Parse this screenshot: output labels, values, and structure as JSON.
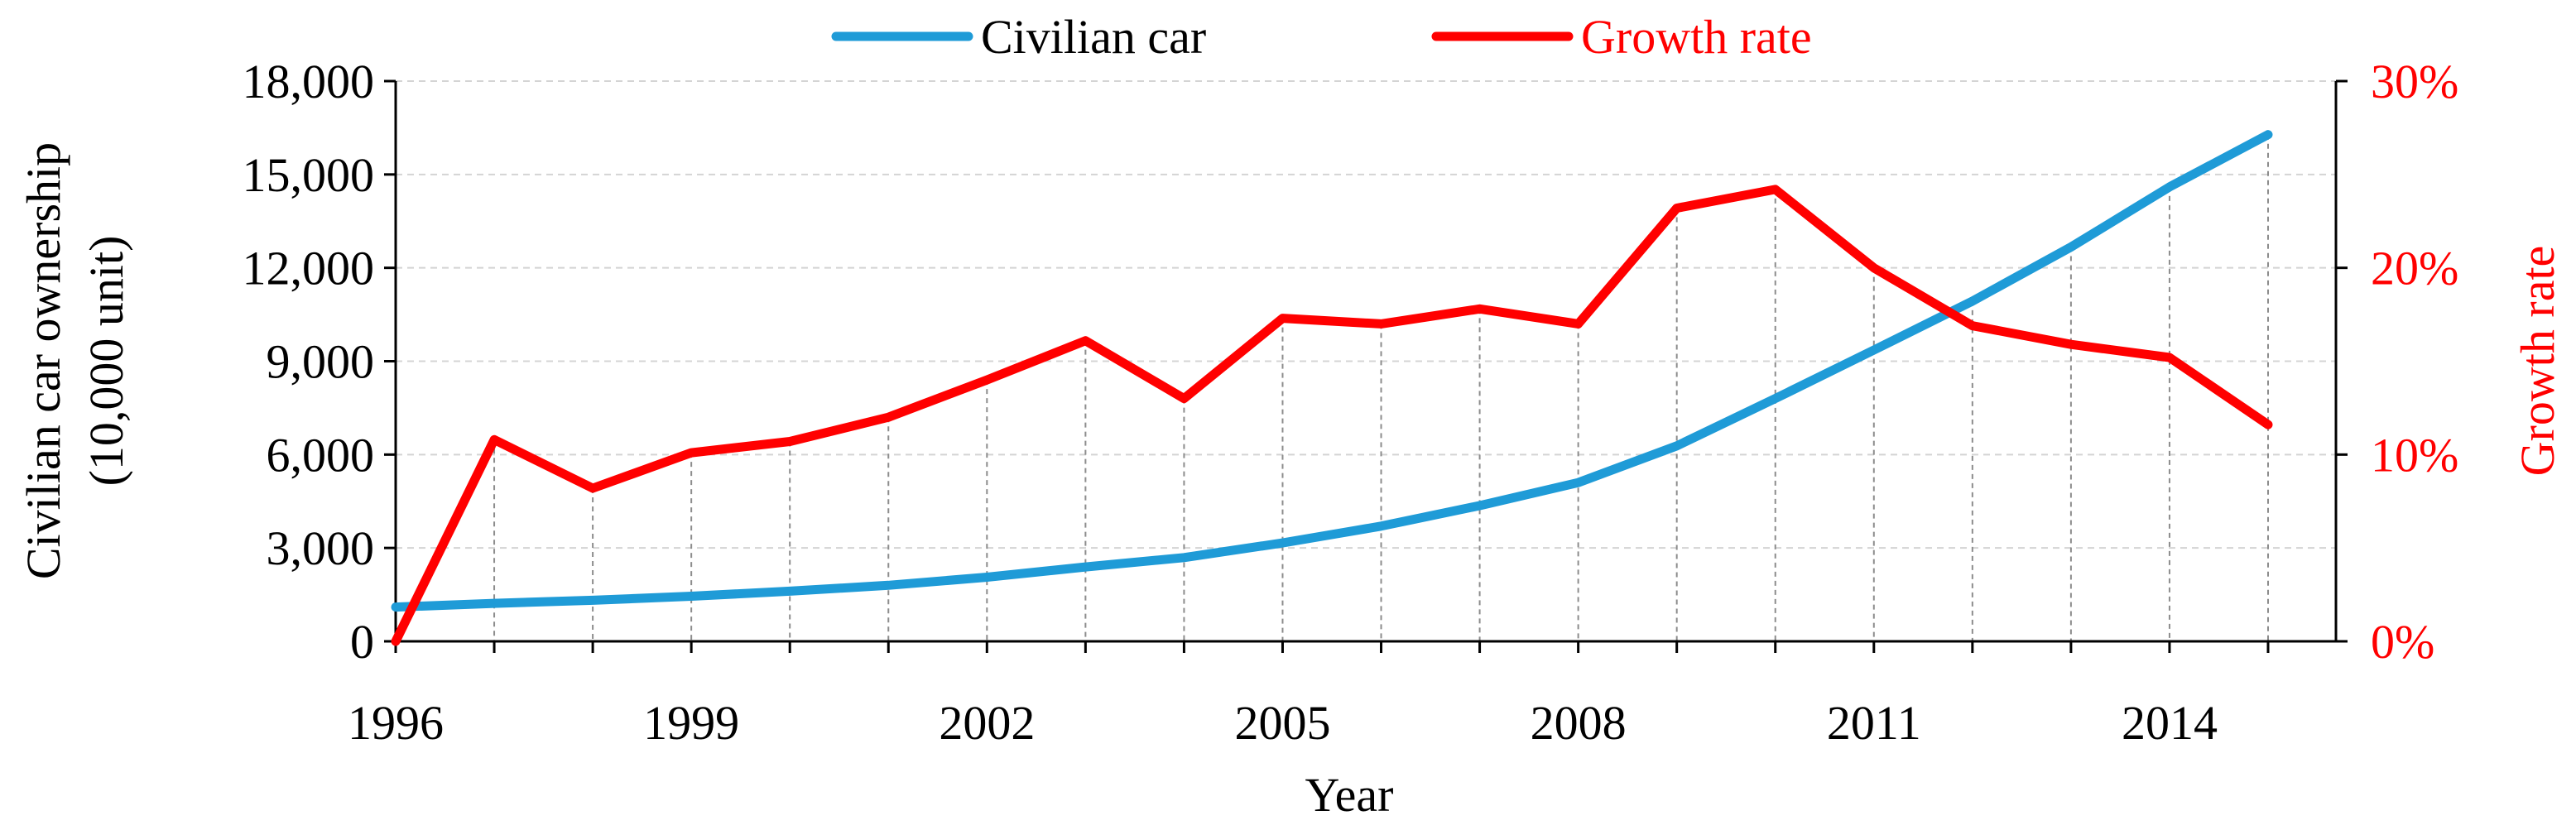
{
  "chart_data": {
    "type": "line",
    "title": "",
    "x": [
      1996,
      1997,
      1998,
      1999,
      2000,
      2001,
      2002,
      2003,
      2004,
      2005,
      2006,
      2007,
      2008,
      2009,
      2010,
      2011,
      2012,
      2013,
      2014,
      2015
    ],
    "x_tick_labels": [
      "1996",
      "1999",
      "2002",
      "2005",
      "2008",
      "2011",
      "2014"
    ],
    "xlabel": "Year",
    "ylabel_left_line1": "Civilian car ownership",
    "ylabel_left_line2": "(10,000 unit)",
    "ylabel_right": "Growth  rate",
    "y_left_range": [
      0,
      18000
    ],
    "y_left_ticks": [
      "0",
      "3,000",
      "6,000",
      "9,000",
      "12,000",
      "15,000",
      "18,000"
    ],
    "y_right_range": [
      0,
      30
    ],
    "y_right_ticks": [
      "0%",
      "10%",
      "20%",
      "30%"
    ],
    "legend_position": "top-center",
    "series": [
      {
        "name": "Civilian car",
        "axis": "left",
        "color": "#1f9bd7",
        "values": [
          1100,
          1220,
          1320,
          1450,
          1610,
          1800,
          2060,
          2390,
          2690,
          3160,
          3700,
          4360,
          5100,
          6280,
          7800,
          9360,
          10930,
          12670,
          14600,
          16280
        ]
      },
      {
        "name": "Growth rate",
        "axis": "right",
        "color": "#ff0000",
        "values": [
          0,
          10.8,
          8.2,
          10.1,
          10.7,
          12.0,
          14.0,
          16.1,
          13.0,
          17.3,
          17.0,
          17.8,
          17.0,
          23.2,
          24.2,
          20.0,
          16.9,
          15.9,
          15.2,
          11.6
        ]
      }
    ],
    "colors": {
      "axis": "#000000",
      "gridline": "#d4d4d4",
      "dropline": "#8c8c8c",
      "right_axis_text": "#ff0000"
    }
  }
}
